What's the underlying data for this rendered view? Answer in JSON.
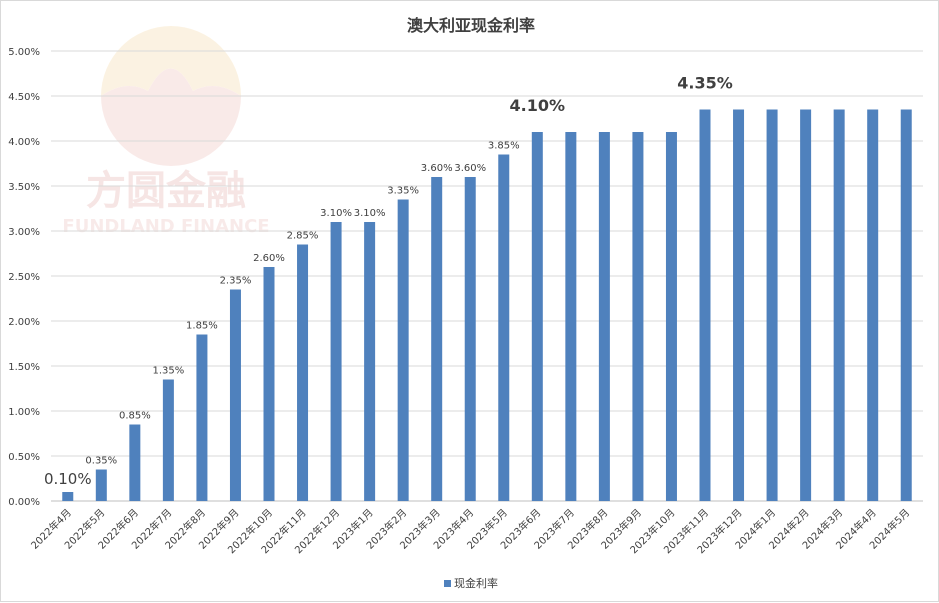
{
  "chart_data": {
    "type": "bar",
    "title": "澳大利亚现金利率",
    "categories": [
      "2022年4月",
      "2022年5月",
      "2022年6月",
      "2022年7月",
      "2022年8月",
      "2022年9月",
      "2022年10月",
      "2022年11月",
      "2022年12月",
      "2023年1月",
      "2023年2月",
      "2023年3月",
      "2023年4月",
      "2023年5月",
      "2023年6月",
      "2023年7月",
      "2023年8月",
      "2023年9月",
      "2023年10月",
      "2023年11月",
      "2023年12月",
      "2024年1月",
      "2024年2月",
      "2024年3月",
      "2024年4月",
      "2024年5月"
    ],
    "series": [
      {
        "name": "现金利率",
        "color": "#4F81BD",
        "values": [
          0.1,
          0.35,
          0.85,
          1.35,
          1.85,
          2.35,
          2.6,
          2.85,
          3.1,
          3.1,
          3.35,
          3.6,
          3.6,
          3.85,
          4.1,
          4.1,
          4.1,
          4.1,
          4.1,
          4.35,
          4.35,
          4.35,
          4.35,
          4.35,
          4.35,
          4.35
        ]
      }
    ],
    "data_labels": [
      "0.10%",
      "0.35%",
      "0.85%",
      "1.35%",
      "1.85%",
      "2.35%",
      "2.60%",
      "2.85%",
      "3.10%",
      "3.10%",
      "3.35%",
      "3.60%",
      "3.60%",
      "3.85%",
      "4.10%",
      "",
      "",
      "",
      "",
      "4.35%",
      "",
      "",
      "",
      "",
      "",
      ""
    ],
    "y_ticks": [
      "0.00%",
      "0.50%",
      "1.00%",
      "1.50%",
      "2.00%",
      "2.50%",
      "3.00%",
      "3.50%",
      "4.00%",
      "4.50%",
      "5.00%"
    ],
    "ylim": [
      0,
      5
    ],
    "grid": true,
    "legend_position": "bottom"
  },
  "watermark": {
    "brand": "方圆金融",
    "brand_en": "FUNDLAND FINANCE"
  }
}
